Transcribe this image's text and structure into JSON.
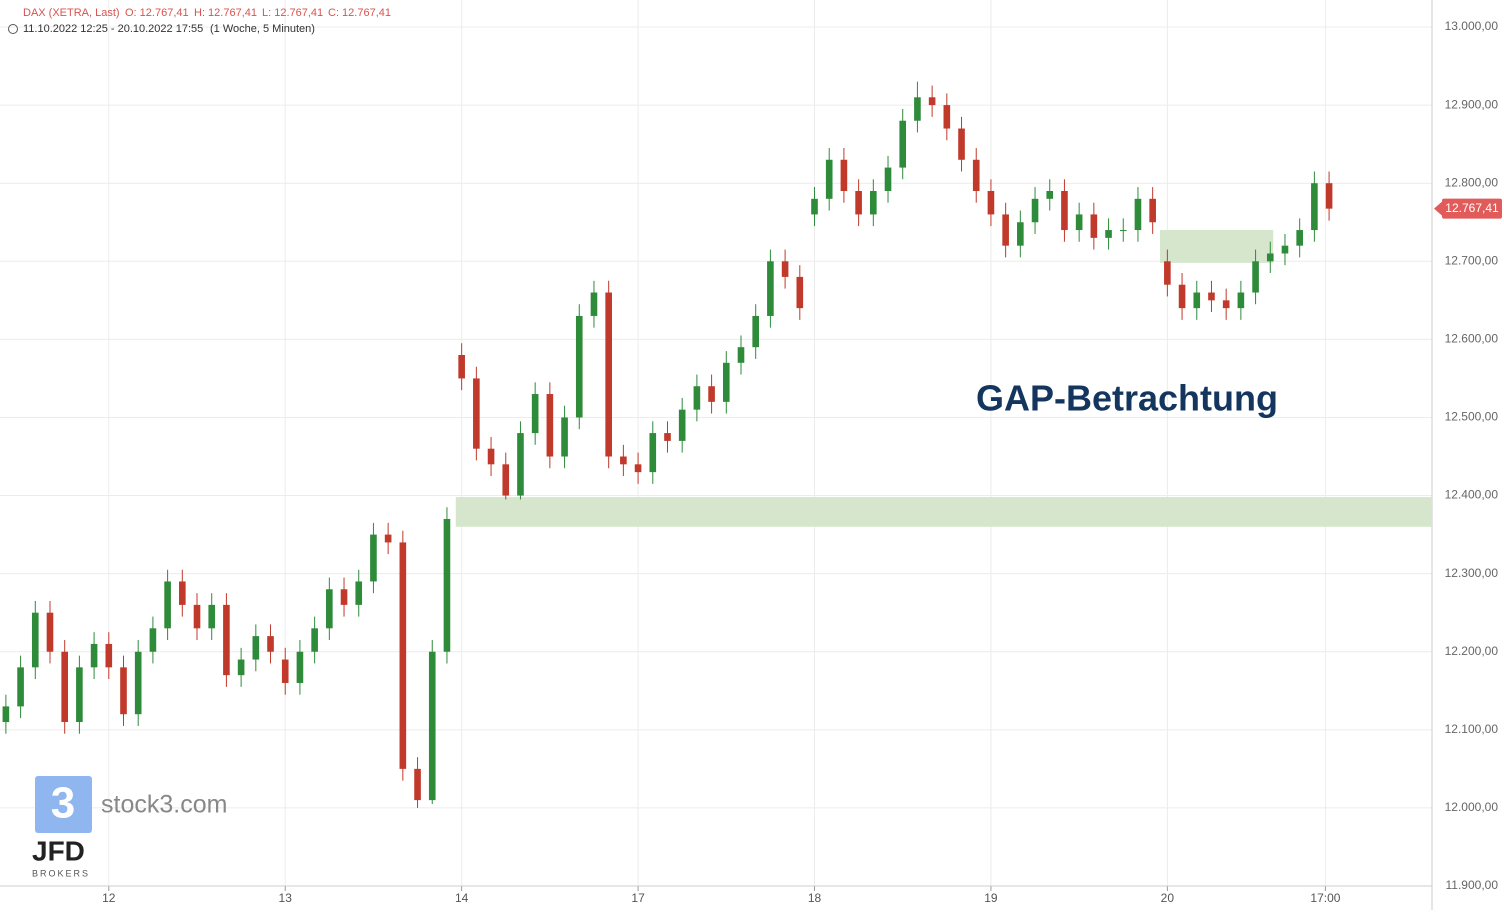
{
  "chart_data": {
    "type": "candlestick",
    "header": {
      "symbol": "DAX (XETRA, Last)",
      "open": "O: 12.767,41",
      "high": "H: 12.767,41",
      "low": "L: 12.767,41",
      "close": "C: 12.767,41",
      "range": "11.10.2022 12:25 - 20.10.2022 17:55",
      "period": "(1 Woche, 5 Minuten)"
    },
    "annotation": "GAP-Betrachtung",
    "logo": {
      "icon": "3",
      "site": "stock3.com",
      "broker": "JFD",
      "broker_sub": "BROKERS"
    },
    "last_price": {
      "value": 12767.41,
      "label": "12.767,41"
    },
    "up_color": "#2e8b3a",
    "down_color": "#c0392b",
    "zone_color": "#d5e6cc",
    "grid": true,
    "xlim": [
      -7.4,
      90
    ],
    "ylim": [
      11900,
      13034.6
    ],
    "xticks": [
      {
        "value": 0,
        "label": "12"
      },
      {
        "value": 12,
        "label": "13"
      },
      {
        "value": 24,
        "label": "14"
      },
      {
        "value": 36,
        "label": "17"
      },
      {
        "value": 48,
        "label": "18"
      },
      {
        "value": 60,
        "label": "19"
      },
      {
        "value": 72,
        "label": "20"
      },
      {
        "value": 82.75,
        "label": "17:00"
      }
    ],
    "yticks": [
      {
        "value": 11900,
        "label": "11.900,00"
      },
      {
        "value": 12000,
        "label": "12.000,00"
      },
      {
        "value": 12100,
        "label": "12.100,00"
      },
      {
        "value": 12200,
        "label": "12.200,00"
      },
      {
        "value": 12300,
        "label": "12.300,00"
      },
      {
        "value": 12400,
        "label": "12.400,00"
      },
      {
        "value": 12500,
        "label": "12.500,00"
      },
      {
        "value": 12600,
        "label": "12.600,00"
      },
      {
        "value": 12700,
        "label": "12.700,00"
      },
      {
        "value": 12800,
        "label": "12.800,00"
      },
      {
        "value": 12900,
        "label": "12.900,00"
      },
      {
        "value": 13000,
        "label": "13.000,00"
      }
    ],
    "zones": [
      {
        "x": [
          23.6,
          90
        ],
        "y": [
          12360,
          12398
        ]
      },
      {
        "x": [
          71.5,
          79.2
        ],
        "y": [
          12698,
          12740
        ]
      }
    ],
    "x": [
      -7,
      -6,
      -5,
      -4,
      -3,
      -2,
      -1,
      0,
      1,
      2,
      3,
      4,
      5,
      6,
      7,
      8,
      9,
      10,
      11,
      12,
      13,
      14,
      15,
      16,
      17,
      18,
      19,
      20,
      21,
      22,
      23,
      24,
      25,
      26,
      27,
      28,
      29,
      30,
      31,
      32,
      33,
      34,
      35,
      36,
      37,
      38,
      39,
      40,
      41,
      42,
      43,
      44,
      45,
      46,
      47,
      48,
      49,
      50,
      51,
      52,
      53,
      54,
      55,
      56,
      57,
      58,
      59,
      60,
      61,
      62,
      63,
      64,
      65,
      66,
      67,
      68,
      69,
      70,
      71,
      72,
      73,
      74,
      75,
      76,
      77,
      78,
      79,
      80,
      81,
      82,
      83
    ],
    "open": [
      12110,
      12130,
      12180,
      12250,
      12200,
      12110,
      12180,
      12210,
      12180,
      12120,
      12200,
      12230,
      12290,
      12260,
      12230,
      12260,
      12170,
      12190,
      12220,
      12190,
      12160,
      12200,
      12230,
      12280,
      12260,
      12290,
      12350,
      12340,
      12050,
      12010,
      12200,
      12580,
      12550,
      12460,
      12440,
      12400,
      12480,
      12530,
      12450,
      12500,
      12630,
      12660,
      12450,
      12440,
      12430,
      12480,
      12470,
      12510,
      12540,
      12520,
      12570,
      12590,
      12630,
      12700,
      12680,
      12760,
      12780,
      12830,
      12790,
      12760,
      12790,
      12820,
      12880,
      12910,
      12900,
      12870,
      12830,
      12790,
      12760,
      12720,
      12750,
      12780,
      12790,
      12740,
      12760,
      12730,
      12740,
      12740,
      12780,
      12700,
      12670,
      12640,
      12660,
      12650,
      12640,
      12660,
      12700,
      12710,
      12720,
      12740,
      12800
    ],
    "high": [
      12145,
      12195,
      12265,
      12265,
      12215,
      12195,
      12225,
      12225,
      12195,
      12215,
      12245,
      12305,
      12305,
      12275,
      12275,
      12275,
      12205,
      12235,
      12235,
      12205,
      12215,
      12245,
      12295,
      12295,
      12305,
      12365,
      12365,
      12355,
      12065,
      12215,
      12385,
      12595,
      12565,
      12475,
      12455,
      12495,
      12545,
      12545,
      12515,
      12645,
      12675,
      12675,
      12465,
      12455,
      12495,
      12495,
      12525,
      12555,
      12555,
      12585,
      12605,
      12645,
      12715,
      12715,
      12695,
      12795,
      12845,
      12845,
      12805,
      12805,
      12835,
      12895,
      12930,
      12925,
      12915,
      12885,
      12845,
      12805,
      12775,
      12765,
      12795,
      12805,
      12805,
      12775,
      12775,
      12755,
      12755,
      12795,
      12795,
      12715,
      12685,
      12675,
      12675,
      12665,
      12675,
      12715,
      12725,
      12735,
      12755,
      12815,
      12815
    ],
    "low": [
      12095,
      12115,
      12165,
      12185,
      12095,
      12095,
      12165,
      12165,
      12105,
      12105,
      12185,
      12215,
      12245,
      12215,
      12215,
      12155,
      12155,
      12175,
      12185,
      12145,
      12145,
      12185,
      12215,
      12245,
      12245,
      12275,
      12325,
      12035,
      12000,
      12005,
      12185,
      12535,
      12445,
      12425,
      12395,
      12395,
      12465,
      12435,
      12435,
      12485,
      12615,
      12435,
      12425,
      12415,
      12415,
      12455,
      12455,
      12495,
      12505,
      12505,
      12555,
      12575,
      12615,
      12665,
      12625,
      12745,
      12765,
      12775,
      12745,
      12745,
      12775,
      12805,
      12865,
      12885,
      12855,
      12815,
      12775,
      12745,
      12705,
      12705,
      12735,
      12765,
      12725,
      12725,
      12715,
      12715,
      12725,
      12725,
      12735,
      12655,
      12625,
      12625,
      12635,
      12625,
      12625,
      12645,
      12685,
      12695,
      12705,
      12725,
      12752
    ],
    "close": [
      12130,
      12180,
      12250,
      12200,
      12110,
      12180,
      12210,
      12180,
      12120,
      12200,
      12230,
      12290,
      12260,
      12230,
      12260,
      12170,
      12190,
      12220,
      12200,
      12160,
      12200,
      12230,
      12280,
      12260,
      12290,
      12350,
      12340,
      12050,
      12010,
      12200,
      12370,
      12550,
      12460,
      12440,
      12400,
      12480,
      12530,
      12450,
      12500,
      12630,
      12660,
      12450,
      12440,
      12430,
      12480,
      12470,
      12510,
      12540,
      12520,
      12570,
      12590,
      12630,
      12700,
      12680,
      12640,
      12780,
      12830,
      12790,
      12760,
      12790,
      12820,
      12880,
      12910,
      12900,
      12870,
      12830,
      12790,
      12760,
      12720,
      12750,
      12780,
      12790,
      12740,
      12760,
      12730,
      12740,
      12740,
      12780,
      12750,
      12670,
      12640,
      12660,
      12650,
      12640,
      12660,
      12700,
      12710,
      12720,
      12740,
      12800,
      12767.41
    ]
  }
}
